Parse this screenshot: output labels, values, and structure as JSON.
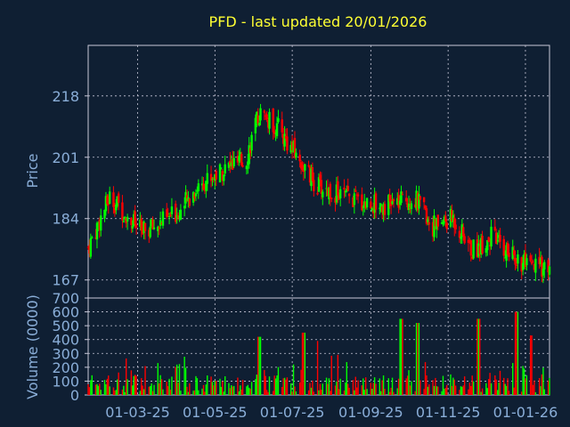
{
  "chart_data": [
    {
      "type": "candlestick",
      "title": "PFD - last updated 20/01/2026",
      "ylabel": "Price",
      "ylim": [
        162,
        232
      ],
      "y_ticks": [
        "167",
        "184",
        "201",
        "218"
      ],
      "x_ticks": [
        "01-03-25",
        "01-05-25",
        "01-07-25",
        "01-09-25",
        "01-11-25",
        "01-01-26"
      ],
      "x_range": [
        "2025-01-21",
        "2026-01-20"
      ],
      "grid": true,
      "colors": {
        "up": "#00ff00",
        "down": "#ff0000"
      },
      "close_profile": [
        [
          "2025-01-21",
          176
        ],
        [
          "2025-02-07",
          190
        ],
        [
          "2025-02-18",
          186
        ],
        [
          "2025-03-05",
          180
        ],
        [
          "2025-03-25",
          184
        ],
        [
          "2025-04-05",
          187
        ],
        [
          "2025-04-20",
          194
        ],
        [
          "2025-05-10",
          198
        ],
        [
          "2025-05-25",
          200
        ],
        [
          "2025-06-05",
          213
        ],
        [
          "2025-06-20",
          209
        ],
        [
          "2025-07-05",
          201
        ],
        [
          "2025-07-20",
          193
        ],
        [
          "2025-08-05",
          191
        ],
        [
          "2025-08-20",
          189
        ],
        [
          "2025-09-05",
          188
        ],
        [
          "2025-09-20",
          188
        ],
        [
          "2025-10-05",
          190
        ],
        [
          "2025-10-20",
          182
        ],
        [
          "2025-11-05",
          184
        ],
        [
          "2025-11-20",
          175
        ],
        [
          "2025-12-05",
          179
        ],
        [
          "2025-12-20",
          174
        ],
        [
          "2026-01-05",
          170
        ],
        [
          "2026-01-20",
          171
        ]
      ]
    },
    {
      "type": "bar",
      "ylabel": "Volume (0000)",
      "ylim": [
        0,
        700
      ],
      "y_ticks": [
        "0",
        "100",
        "200",
        "300",
        "400",
        "500",
        "600",
        "700"
      ],
      "x_range": [
        "2025-01-21",
        "2026-01-20"
      ],
      "typical_volume": 100,
      "volume_spikes": [
        [
          "2025-06-05",
          420
        ],
        [
          "2025-07-10",
          450
        ],
        [
          "2025-07-20",
          390
        ],
        [
          "2025-09-25",
          550
        ],
        [
          "2025-10-08",
          520
        ],
        [
          "2025-11-25",
          550
        ],
        [
          "2025-12-25",
          600
        ],
        [
          "2026-01-05",
          430
        ]
      ]
    }
  ]
}
